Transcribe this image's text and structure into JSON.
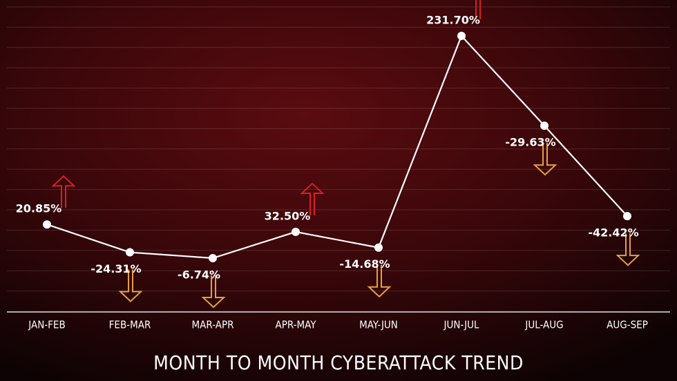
{
  "chart_data": {
    "type": "line",
    "title": "MONTH TO MONTH CYBERATTACK TREND",
    "categories": [
      "JAN-FEB",
      "FEB-MAR",
      "MAR-APR",
      "APR-MAY",
      "MAY-JUN",
      "JUN-JUL",
      "JUL-AUG",
      "AUG-SEP"
    ],
    "values": [
      20.85,
      -24.31,
      -6.74,
      32.5,
      -14.68,
      231.7,
      -29.63,
      -42.42
    ],
    "value_labels": [
      "20.85%",
      "-24.31%",
      "-6.74%",
      "32.50%",
      "-14.68%",
      "231.70%",
      "-29.63%",
      "-42.42%"
    ],
    "color": "#ffffff",
    "up_color": "#d8202a",
    "down_color": "#e8a040"
  }
}
